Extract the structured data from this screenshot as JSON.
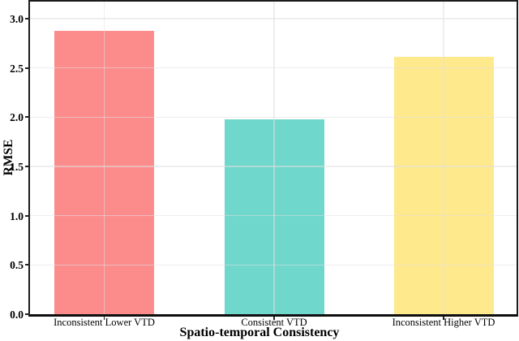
{
  "chart_data": {
    "type": "bar",
    "title": "",
    "xlabel": "Spatio-temporal Consistency",
    "ylabel": "RMSE",
    "categories": [
      "Inconsistent Lower VTD",
      "Consistent VTD",
      "Inconsistent Higher VTD"
    ],
    "values": [
      2.88,
      1.98,
      2.61
    ],
    "bar_colors": [
      "#FC8C8C",
      "#70D7CD",
      "#FFE98D"
    ],
    "ylim": [
      0,
      3.0
    ],
    "yticks": [
      0,
      0.5,
      1,
      1.5,
      2,
      2.5,
      3
    ],
    "ytick_labels": [
      "0.0",
      "0.5",
      "1.0",
      "1.5",
      "2.0",
      "2.5",
      "3.0"
    ],
    "grid": true,
    "gridlines": "major horizontal at each 0.5 and vertical at each category center, drawn faintly over bars",
    "legend_position": "none",
    "frame_color": "#1b1b1b",
    "grid_color": "rgba(224,224,224,0.55)",
    "background_color": "#ffffff"
  }
}
